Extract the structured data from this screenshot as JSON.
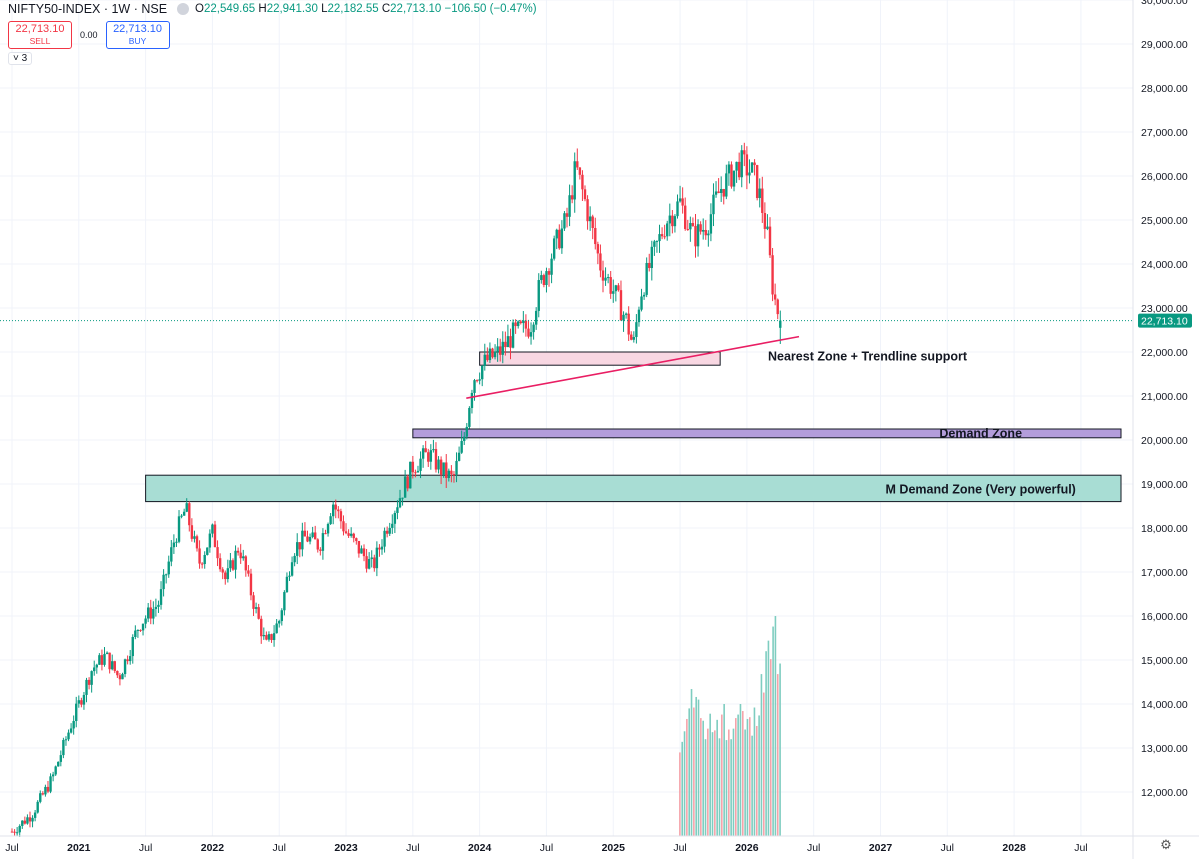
{
  "header": {
    "symbol": "NIFTY50-INDEX · 1W · NSE",
    "open_label": "O",
    "open": "22,549.65",
    "high_label": "H",
    "high": "22,941.30",
    "low_label": "L",
    "low": "22,182.55",
    "close_label": "C",
    "close": "22,713.10",
    "change": "−106.50 (−0.47%)"
  },
  "trade": {
    "sell_price": "22,713.10",
    "sell_label": "SELL",
    "spread": "0.00",
    "buy_price": "22,713.10",
    "buy_label": "BUY"
  },
  "indicator_toggle": "˅ 3",
  "colors": {
    "up": "#089981",
    "down": "#f23645",
    "trendline": "#e91e63",
    "last_price": "#089981"
  },
  "chart_data": {
    "type": "candlestick",
    "title": "NIFTY50-INDEX · 1W · NSE",
    "ylim": [
      11000,
      30000
    ],
    "y_ticks": [
      12000,
      13000,
      14000,
      15000,
      16000,
      17000,
      18000,
      19000,
      20000,
      21000,
      22000,
      23000,
      24000,
      25000,
      26000,
      27000,
      28000,
      29000,
      30000
    ],
    "y_tick_labels": [
      "12,000.00",
      "13,000.00",
      "14,000.00",
      "15,000.00",
      "16,000.00",
      "17,000.00",
      "18,000.00",
      "19,000.00",
      "20,000.00",
      "21,000.00",
      "22,000.00",
      "23,000.00",
      "24,000.00",
      "25,000.00",
      "26,000.00",
      "27,000.00",
      "28,000.00",
      "29,000.00",
      "30,000.00"
    ],
    "x_range": [
      2020.5,
      2028.8
    ],
    "x_ticks": [
      {
        "t": 2020.5,
        "label": "Jul",
        "bold": false
      },
      {
        "t": 2021.0,
        "label": "2021",
        "bold": true
      },
      {
        "t": 2021.5,
        "label": "Jul",
        "bold": false
      },
      {
        "t": 2022.0,
        "label": "2022",
        "bold": true
      },
      {
        "t": 2022.5,
        "label": "Jul",
        "bold": false
      },
      {
        "t": 2023.0,
        "label": "2023",
        "bold": true
      },
      {
        "t": 2023.5,
        "label": "Jul",
        "bold": false
      },
      {
        "t": 2024.0,
        "label": "2024",
        "bold": true
      },
      {
        "t": 2024.5,
        "label": "Jul",
        "bold": false
      },
      {
        "t": 2025.0,
        "label": "2025",
        "bold": true
      },
      {
        "t": 2025.5,
        "label": "Jul",
        "bold": false
      },
      {
        "t": 2026.0,
        "label": "2026",
        "bold": true
      },
      {
        "t": 2026.5,
        "label": "Jul",
        "bold": false
      },
      {
        "t": 2027.0,
        "label": "2027",
        "bold": true
      },
      {
        "t": 2027.5,
        "label": "Jul",
        "bold": false
      },
      {
        "t": 2028.0,
        "label": "2028",
        "bold": true
      },
      {
        "t": 2028.5,
        "label": "Jul",
        "bold": false
      }
    ],
    "price_path": [
      [
        2020.5,
        11100
      ],
      [
        2020.65,
        11500
      ],
      [
        2020.8,
        12300
      ],
      [
        2020.95,
        13600
      ],
      [
        2021.1,
        14800
      ],
      [
        2021.2,
        15100
      ],
      [
        2021.3,
        14600
      ],
      [
        2021.45,
        15800
      ],
      [
        2021.6,
        16300
      ],
      [
        2021.72,
        17800
      ],
      [
        2021.8,
        18450
      ],
      [
        2021.9,
        17200
      ],
      [
        2022.0,
        17900
      ],
      [
        2022.1,
        16800
      ],
      [
        2022.2,
        17600
      ],
      [
        2022.3,
        16400
      ],
      [
        2022.4,
        15300
      ],
      [
        2022.5,
        15900
      ],
      [
        2022.6,
        17500
      ],
      [
        2022.7,
        17800
      ],
      [
        2022.8,
        17600
      ],
      [
        2022.9,
        18600
      ],
      [
        2023.0,
        17900
      ],
      [
        2023.1,
        17500
      ],
      [
        2023.2,
        17100
      ],
      [
        2023.3,
        18000
      ],
      [
        2023.4,
        18700
      ],
      [
        2023.5,
        19400
      ],
      [
        2023.62,
        19700
      ],
      [
        2023.72,
        19300
      ],
      [
        2023.8,
        19100
      ],
      [
        2023.88,
        20000
      ],
      [
        2023.95,
        21400
      ],
      [
        2024.05,
        21800
      ],
      [
        2024.15,
        22000
      ],
      [
        2024.25,
        22400
      ],
      [
        2024.38,
        22600
      ],
      [
        2024.45,
        23500
      ],
      [
        2024.55,
        24300
      ],
      [
        2024.65,
        25000
      ],
      [
        2024.72,
        26200
      ],
      [
        2024.8,
        25300
      ],
      [
        2024.9,
        24000
      ],
      [
        2025.0,
        23400
      ],
      [
        2025.1,
        22700
      ],
      [
        2025.15,
        22100
      ],
      [
        2025.2,
        23300
      ],
      [
        2025.3,
        24200
      ],
      [
        2025.4,
        25000
      ],
      [
        2025.5,
        25400
      ],
      [
        2025.6,
        24600
      ],
      [
        2025.7,
        24900
      ],
      [
        2025.8,
        25700
      ],
      [
        2025.9,
        26100
      ],
      [
        2025.95,
        26300
      ],
      [
        2026.05,
        26050
      ],
      [
        2026.1,
        25500
      ],
      [
        2026.15,
        24700
      ],
      [
        2026.2,
        23300
      ],
      [
        2026.25,
        22713
      ]
    ],
    "last": {
      "open": 22549.65,
      "high": 22941.3,
      "low": 22182.55,
      "close": 22713.1,
      "label": "22,713.10"
    },
    "volume": {
      "x_start": 2025.5,
      "x_end": 2026.25,
      "base_levels": [
        13200,
        13900,
        14100,
        13800,
        13500,
        13600,
        13400,
        13700,
        13300,
        13500,
        14000,
        13600,
        13400,
        13800,
        14500,
        15200,
        15700,
        14800
      ],
      "y_floor": 11000
    },
    "zones": [
      {
        "name": "Nearest Zone + Trendline support",
        "x0": 2024.0,
        "x1": 2025.8,
        "y0": 21700,
        "y1": 22000,
        "fill": "#f8d7e2",
        "stroke": "#131722"
      },
      {
        "name": "Demand Zone",
        "x0": 2023.5,
        "x1": 2028.8,
        "y0": 20050,
        "y1": 20250,
        "fill": "#b39ddb",
        "stroke": "#131722"
      },
      {
        "name": "M Demand Zone (Very powerful)",
        "x0": 2021.5,
        "x1": 2028.8,
        "y0": 18600,
        "y1": 19200,
        "fill": "#a8ddd4",
        "stroke": "#131722"
      }
    ],
    "trendline": {
      "x0": 2023.9,
      "y0": 20950,
      "x1": 2026.39,
      "y1": 22350
    },
    "annotations": [
      {
        "text": "Nearest Zone + Trendline support",
        "x": 2025.6,
        "y": 21900
      },
      {
        "text": "Demand Zone",
        "x": 2027.75,
        "y": 20150
      },
      {
        "text": "M Demand Zone (Very powerful)",
        "x": 2027.75,
        "y": 18870
      }
    ]
  }
}
